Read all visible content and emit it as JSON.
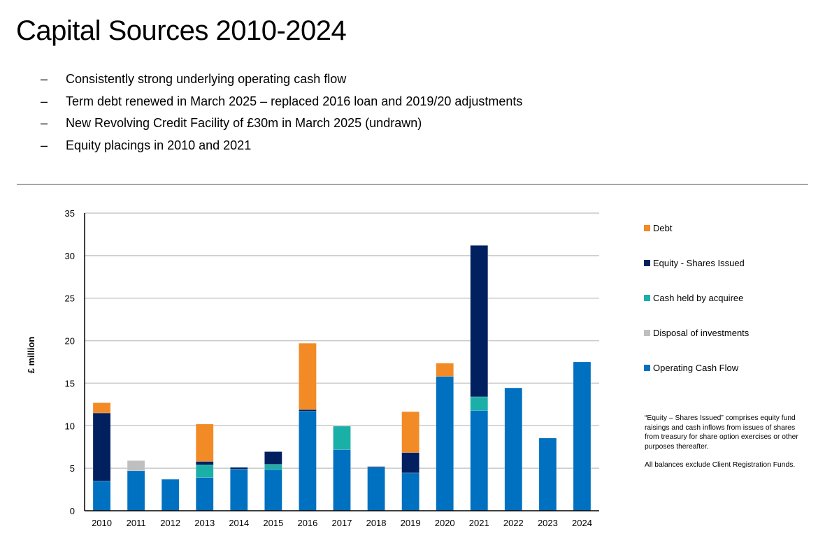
{
  "page": {
    "title": "Capital Sources 2010-2024",
    "bullets": [
      {
        "marker": "–",
        "text": "Consistently strong underlying operating cash flow"
      },
      {
        "marker": "–",
        "text": "Term debt renewed in March 2025 – replaced 2016 loan and 2019/20 adjustments"
      },
      {
        "marker": "–",
        "text": "New Revolving Credit Facility of £30m in March 2025 (undrawn)"
      },
      {
        "marker": "–",
        "text": "Equity placings in 2010 and 2021"
      }
    ],
    "notes": [
      "“Equity – Shares Issued” comprises equity fund raisings and cash inflows from issues of shares from treasury for share option exercises or other purposes thereafter.",
      "All balances exclude Client Registration Funds."
    ]
  },
  "chart_data": {
    "type": "bar",
    "stacked": true,
    "title": "",
    "xlabel": "",
    "ylabel": "£ million",
    "ylim": [
      0,
      35
    ],
    "yticks": [
      0,
      5,
      10,
      15,
      20,
      25,
      30,
      35
    ],
    "grid": true,
    "legend_position": "right",
    "categories": [
      "2010",
      "2011",
      "2012",
      "2013",
      "2014",
      "2015",
      "2016",
      "2017",
      "2018",
      "2019",
      "2020",
      "2021",
      "2022",
      "2023",
      "2024"
    ],
    "series": [
      {
        "name": "Operating Cash Flow",
        "color": "#0070c0",
        "values": [
          3.5,
          4.7,
          3.7,
          3.9,
          4.9,
          4.85,
          11.7,
          7.2,
          5.1,
          4.45,
          15.8,
          11.8,
          14.45,
          8.55,
          17.5
        ]
      },
      {
        "name": "Disposal of investments",
        "color": "#bfbfbf",
        "values": [
          0,
          1.2,
          0,
          0,
          0,
          0,
          0,
          0,
          0,
          0,
          0,
          0,
          0,
          0,
          0
        ]
      },
      {
        "name": "Cash held by acquiree",
        "color": "#1ab0a8",
        "values": [
          0,
          0,
          0,
          1.5,
          0,
          0.6,
          0,
          2.75,
          0,
          0,
          0,
          1.6,
          0,
          0,
          0
        ]
      },
      {
        "name": "Equity - Shares Issued",
        "color": "#002060",
        "values": [
          8.0,
          0,
          0,
          0.4,
          0.2,
          1.5,
          0.2,
          0,
          0.1,
          2.4,
          0,
          17.8,
          0,
          0,
          0
        ]
      },
      {
        "name": "Debt",
        "color": "#f28a26",
        "values": [
          1.2,
          0,
          0,
          4.4,
          0,
          0,
          7.8,
          0,
          0,
          4.8,
          1.55,
          0,
          0,
          0,
          0
        ]
      }
    ],
    "legend_order": [
      "Debt",
      "Equity - Shares Issued",
      "Cash held by acquiree",
      "Disposal of investments",
      "Operating Cash Flow"
    ]
  }
}
